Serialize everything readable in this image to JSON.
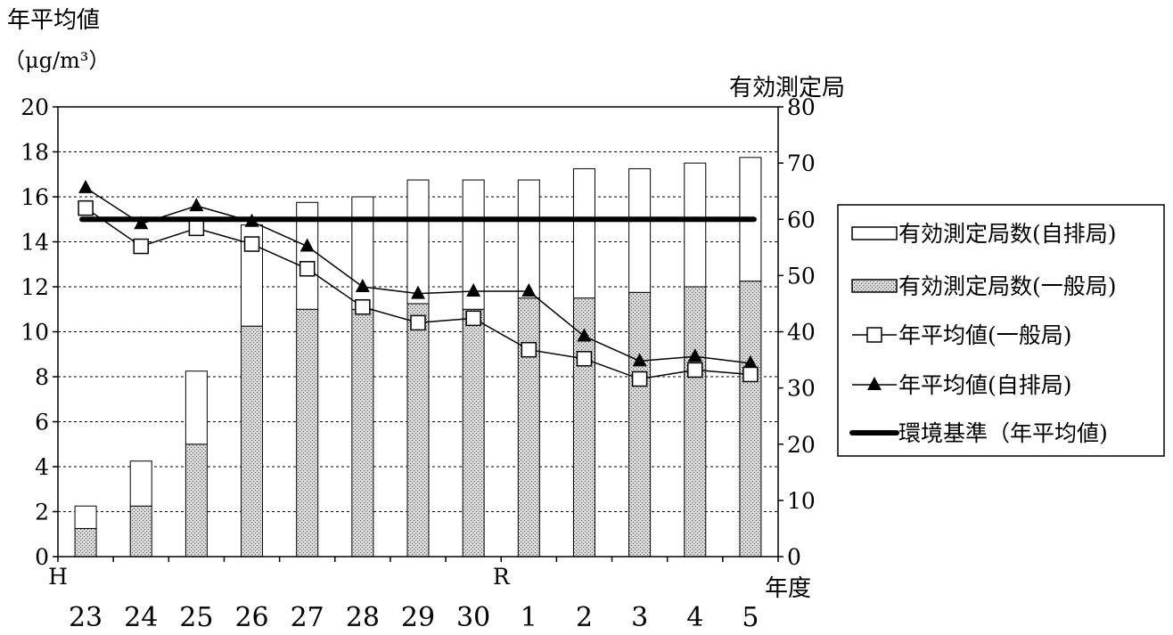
{
  "chart_data": {
    "type": "bar",
    "left_axis_title": "年平均値",
    "left_axis_unit": "（μg/m³）",
    "right_axis_title": "有効測定局",
    "x_axis_unit": "年度",
    "era_labels": [
      {
        "label": "H",
        "category_index": 0
      },
      {
        "label": "R",
        "category_index": 8
      }
    ],
    "categories": [
      "23",
      "24",
      "25",
      "26",
      "27",
      "28",
      "29",
      "30",
      "1",
      "2",
      "3",
      "4",
      "5"
    ],
    "y_left_lim": [
      0,
      20
    ],
    "y_left_ticks": [
      "0",
      "2",
      "4",
      "6",
      "8",
      "10",
      "12",
      "14",
      "16",
      "18",
      "20"
    ],
    "y_right_lim": [
      0,
      80
    ],
    "y_right_ticks": [
      "0",
      "10",
      "20",
      "30",
      "40",
      "50",
      "60",
      "70",
      "80"
    ],
    "grid": "horizontal dashed",
    "legend_position": "right",
    "series": [
      {
        "name": "有効測定局数(自排局)",
        "kind": "bar",
        "axis": "right",
        "stacked_on": "有効測定局数(一般局)",
        "values": [
          4,
          8,
          13,
          18,
          19,
          20,
          22,
          23,
          21,
          23,
          22,
          22,
          22
        ]
      },
      {
        "name": "有効測定局数(一般局)",
        "kind": "bar",
        "axis": "right",
        "values": [
          5,
          9,
          20,
          41,
          44,
          44,
          45,
          44,
          46,
          46,
          47,
          48,
          49
        ]
      },
      {
        "name": "年平均値(一般局)",
        "kind": "line",
        "marker": "square",
        "axis": "left",
        "values": [
          15.5,
          13.8,
          14.6,
          13.9,
          12.8,
          11.1,
          10.4,
          10.6,
          9.2,
          8.8,
          7.9,
          8.3,
          8.1
        ]
      },
      {
        "name": "年平均値(自排局)",
        "kind": "line",
        "marker": "triangle",
        "axis": "left",
        "values": [
          16.4,
          14.8,
          15.6,
          14.9,
          13.8,
          12.0,
          11.7,
          11.8,
          11.8,
          9.8,
          8.7,
          8.9,
          8.6
        ]
      },
      {
        "name": "環境基準（年平均値)",
        "kind": "reference",
        "axis": "left",
        "values": [
          15,
          15,
          15,
          15,
          15,
          15,
          15,
          15,
          15,
          15,
          15,
          15,
          15
        ]
      }
    ]
  }
}
